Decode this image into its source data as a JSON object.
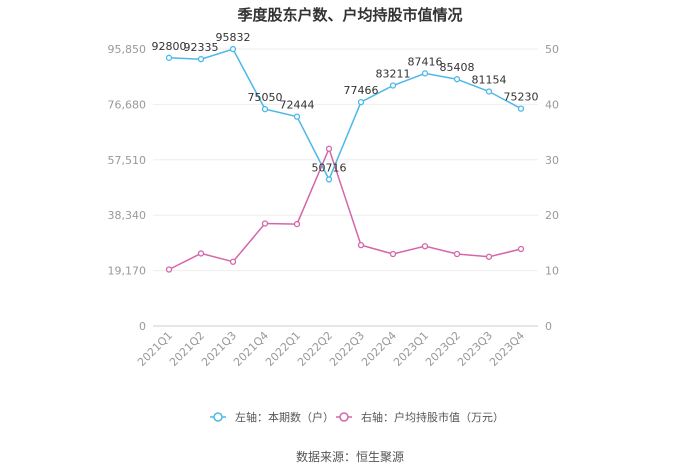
{
  "chart_data": {
    "type": "line",
    "title": "季度股东户数、户均持股市值情况",
    "categories": [
      "2021Q1",
      "2021Q2",
      "2021Q3",
      "2021Q4",
      "2022Q1",
      "2022Q2",
      "2022Q3",
      "2022Q4",
      "2023Q1",
      "2023Q2",
      "2023Q3",
      "2023Q4"
    ],
    "series": [
      {
        "name": "左轴：本期数（户）",
        "axis": "left",
        "color": "#4db8e8",
        "values": [
          92800,
          92335,
          95832,
          75050,
          72444,
          50716,
          77466,
          83211,
          87416,
          85408,
          81154,
          75230
        ],
        "labels": [
          "92800",
          "92335",
          "95832",
          "75050",
          "72444",
          "50716",
          "77466",
          "83211",
          "87416",
          "85408",
          "81154",
          "75230"
        ]
      },
      {
        "name": "右轴：户均持股市值（万元）",
        "axis": "right",
        "color": "#d466a8",
        "values": [
          10.2,
          13.1,
          11.6,
          18.5,
          18.4,
          32.0,
          14.6,
          13.0,
          14.4,
          13.0,
          12.5,
          13.9
        ]
      }
    ],
    "y_left": {
      "min": 0,
      "max": 95850,
      "ticks": [
        0,
        19170,
        38340,
        57510,
        76680,
        95850
      ],
      "tick_labels": [
        "0",
        "19,170",
        "38,340",
        "57,510",
        "76,680",
        "95,850"
      ]
    },
    "y_right": {
      "min": 0,
      "max": 50,
      "ticks": [
        0,
        10,
        20,
        30,
        40,
        50
      ],
      "tick_labels": [
        "0",
        "10",
        "20",
        "30",
        "40",
        "50"
      ]
    },
    "legend_position": "bottom",
    "source": "数据来源：恒生聚源"
  }
}
